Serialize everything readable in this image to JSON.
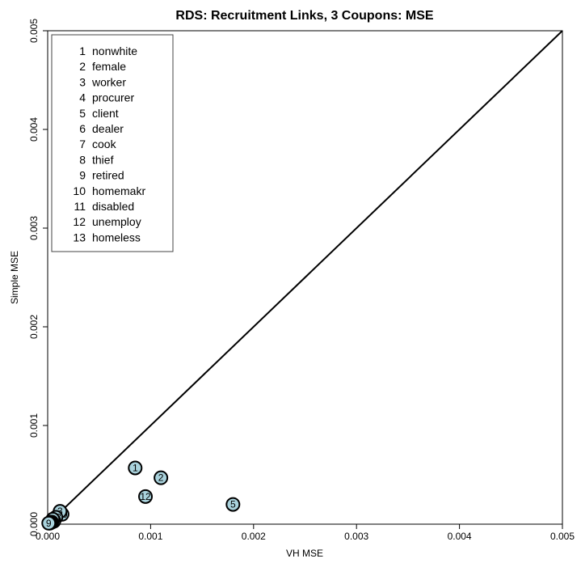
{
  "chart_data": {
    "type": "scatter",
    "title": "RDS: Recruitment Links, 3 Coupons: MSE",
    "xlabel": "VH MSE",
    "ylabel": "Simple MSE",
    "xlim": [
      0,
      0.005
    ],
    "ylim": [
      0,
      0.005
    ],
    "x_ticks": [
      "0.000",
      "0.001",
      "0.002",
      "0.003",
      "0.004",
      "0.005"
    ],
    "y_ticks": [
      "0.000",
      "0.001",
      "0.002",
      "0.003",
      "0.004",
      "0.005"
    ],
    "reference_line": "y = x",
    "grid": false,
    "legend_position": "top-left",
    "marker_color": "#a9d2dc",
    "legend": [
      {
        "id": "1",
        "name": "nonwhite"
      },
      {
        "id": "2",
        "name": "female"
      },
      {
        "id": "3",
        "name": "worker"
      },
      {
        "id": "4",
        "name": "procurer"
      },
      {
        "id": "5",
        "name": "client"
      },
      {
        "id": "6",
        "name": "dealer"
      },
      {
        "id": "7",
        "name": "cook"
      },
      {
        "id": "8",
        "name": "thief"
      },
      {
        "id": "9",
        "name": "retired"
      },
      {
        "id": "10",
        "name": "homemakr"
      },
      {
        "id": "11",
        "name": "disabled"
      },
      {
        "id": "12",
        "name": "unemploy"
      },
      {
        "id": "13",
        "name": "homeless"
      }
    ],
    "points": [
      {
        "label": "1",
        "x": 0.00085,
        "y": 0.00057
      },
      {
        "label": "2",
        "x": 0.0011,
        "y": 0.00047
      },
      {
        "label": "3",
        "x": 0.00012,
        "y": 0.00013
      },
      {
        "label": "4",
        "x": 2e-05,
        "y": 1e-05
      },
      {
        "label": "5",
        "x": 0.0018,
        "y": 0.0002
      },
      {
        "label": "6",
        "x": 5e-05,
        "y": 5e-05
      },
      {
        "label": "7",
        "x": 3e-05,
        "y": 2e-05
      },
      {
        "label": "8",
        "x": 6e-05,
        "y": 3e-05
      },
      {
        "label": "9",
        "x": 1e-05,
        "y": 1e-05
      },
      {
        "label": "10",
        "x": 0.00014,
        "y": 0.0001
      },
      {
        "label": "11",
        "x": 4e-05,
        "y": 2e-05
      },
      {
        "label": "12",
        "x": 0.00095,
        "y": 0.00028
      },
      {
        "label": "13",
        "x": 8e-05,
        "y": 7e-05
      }
    ]
  }
}
